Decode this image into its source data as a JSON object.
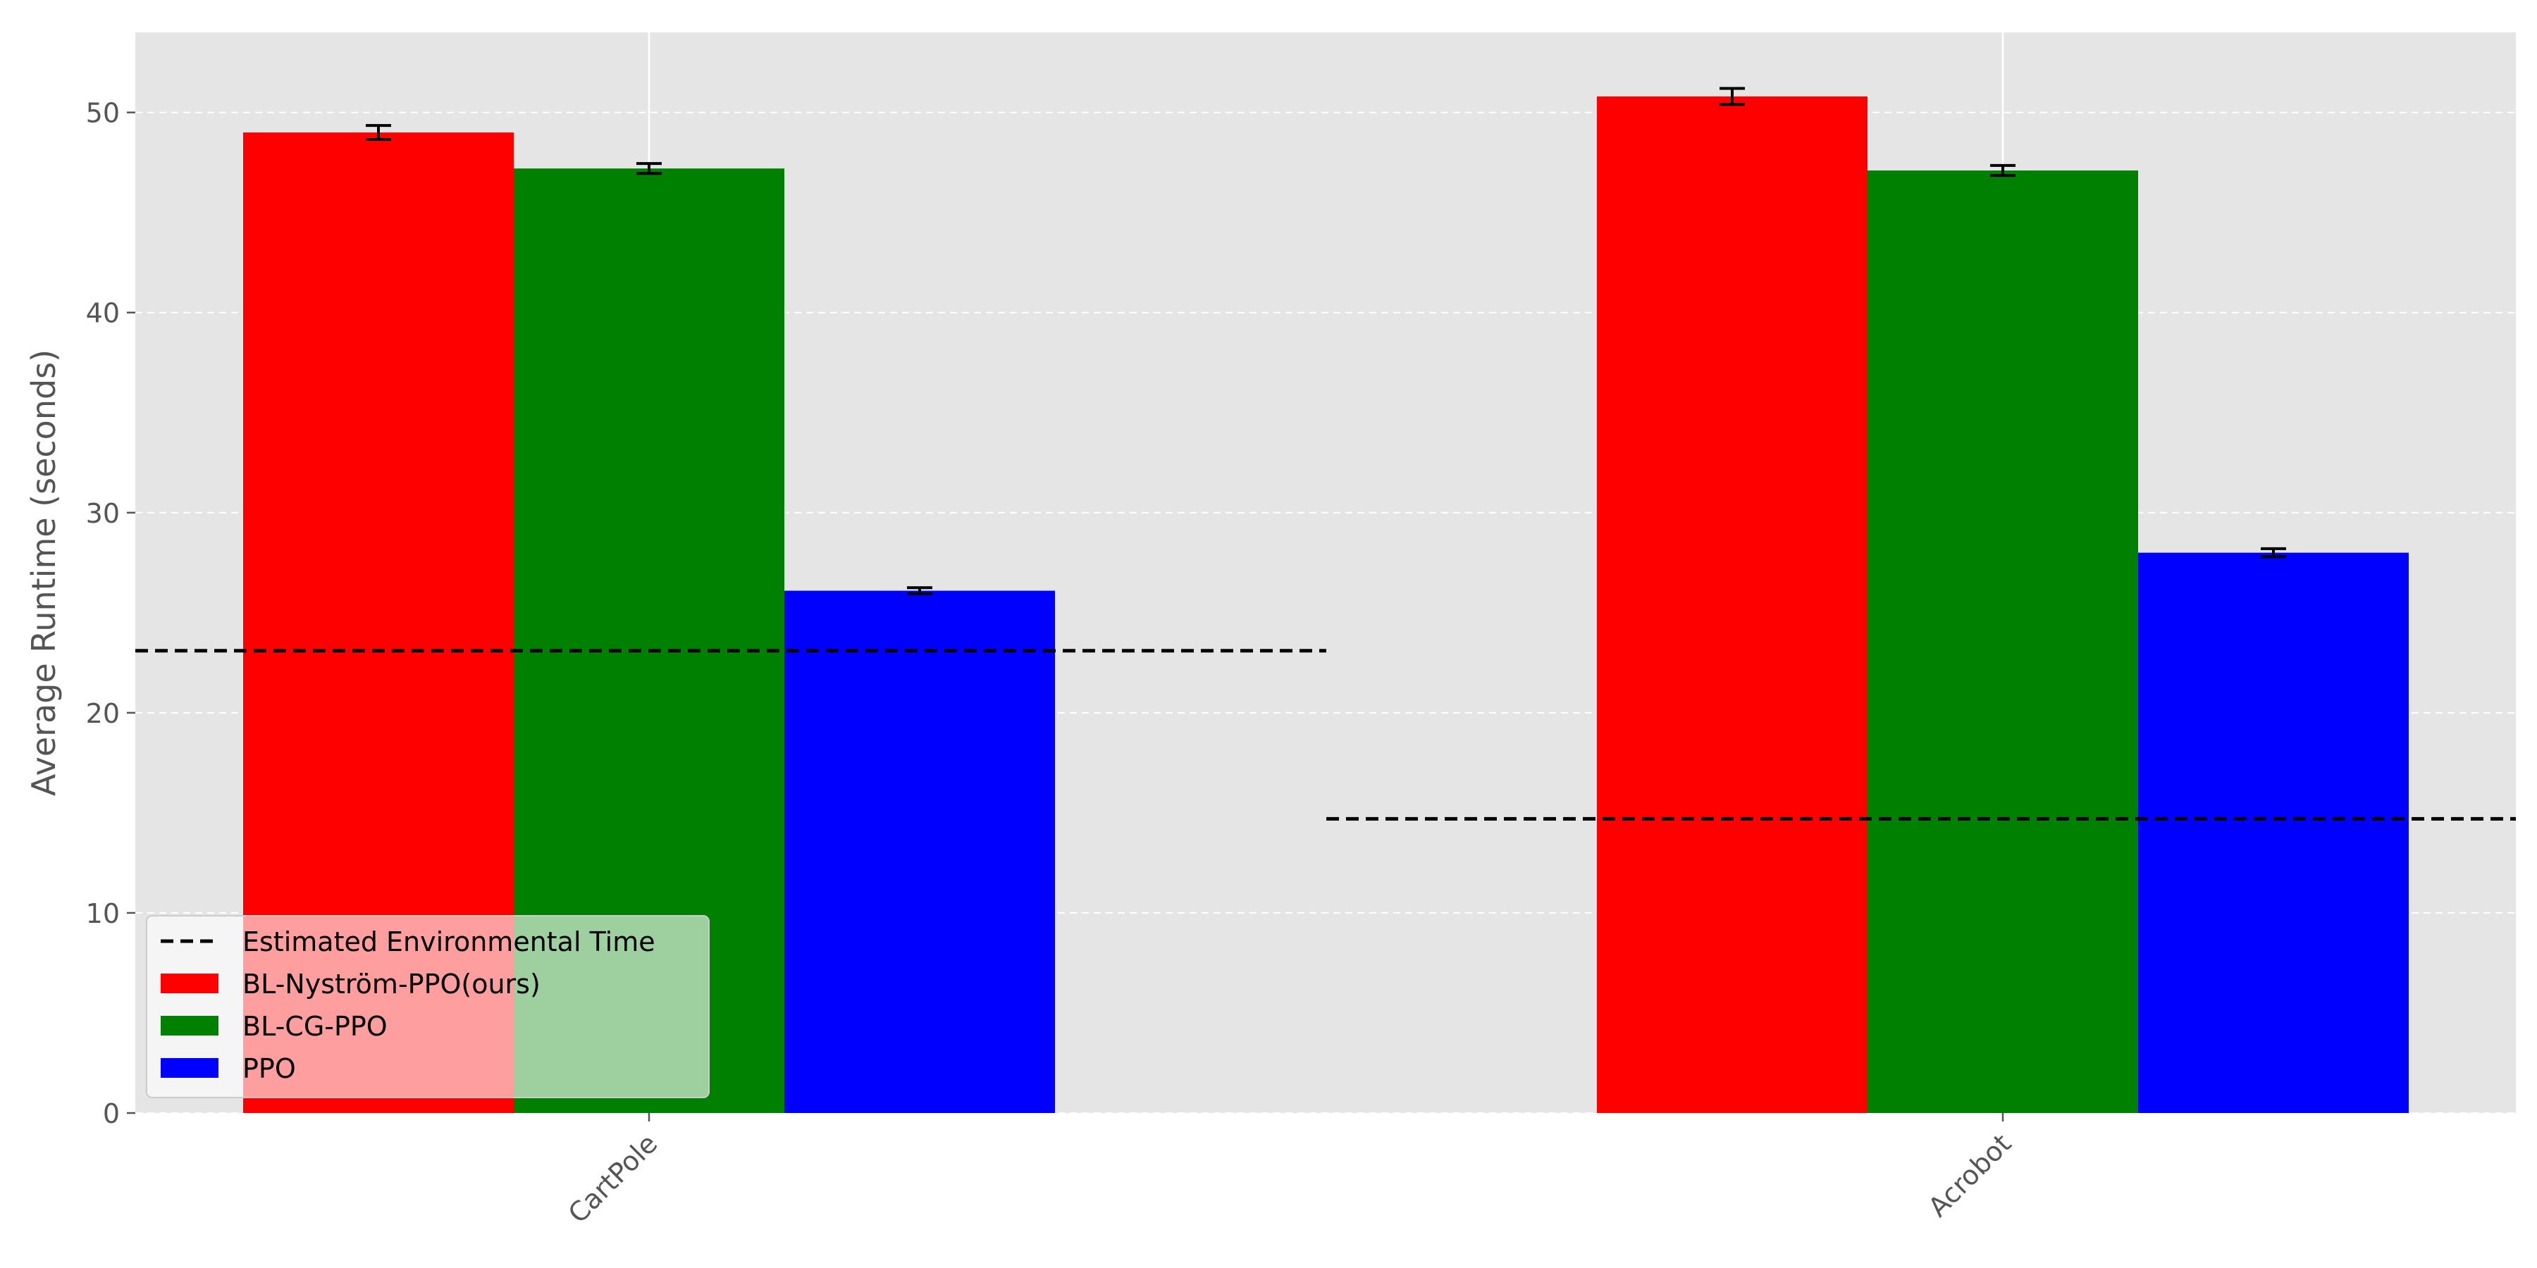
{
  "chart_data": {
    "type": "bar",
    "title": "",
    "xlabel": "",
    "ylabel": "Average Runtime (seconds)",
    "ylim": [
      0,
      54
    ],
    "yticks": [
      0,
      10,
      20,
      30,
      40,
      50
    ],
    "categories": [
      "CartPole",
      "Acrobot"
    ],
    "series": [
      {
        "name": "BL-Nyström-PPO(ours)",
        "color": "#ff0000",
        "values": [
          49.0,
          50.8
        ],
        "errors": [
          0.35,
          0.4
        ]
      },
      {
        "name": "BL-CG-PPO",
        "color": "#008000",
        "values": [
          47.2,
          47.1
        ],
        "errors": [
          0.25,
          0.25
        ]
      },
      {
        "name": "PPO",
        "color": "#0000ff",
        "values": [
          26.1,
          28.0
        ],
        "errors": [
          0.15,
          0.2
        ]
      }
    ],
    "reference_lines": {
      "name": "Estimated Environmental Time",
      "style": "dashed",
      "color": "#000000",
      "values": [
        23.1,
        14.7
      ]
    },
    "legend_position": "lower-left",
    "grid": true,
    "background": "#e5e5e5"
  }
}
